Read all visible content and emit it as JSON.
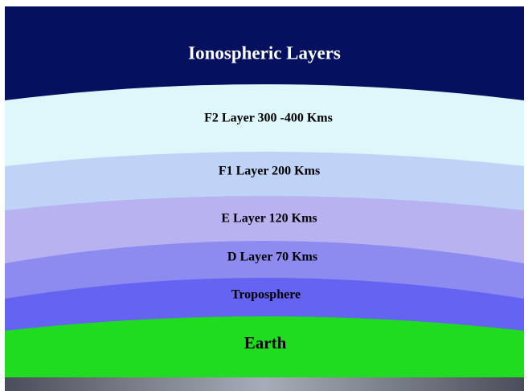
{
  "title": "Ionospheric Layers",
  "layers": [
    {
      "label": "F2 Layer 300 -400 Kms"
    },
    {
      "label": "F1 Layer 200 Kms"
    },
    {
      "label": "E Layer 120 Kms"
    },
    {
      "label": "D Layer 70 Kms"
    },
    {
      "label": "Troposphere"
    },
    {
      "label": "Earth"
    }
  ]
}
